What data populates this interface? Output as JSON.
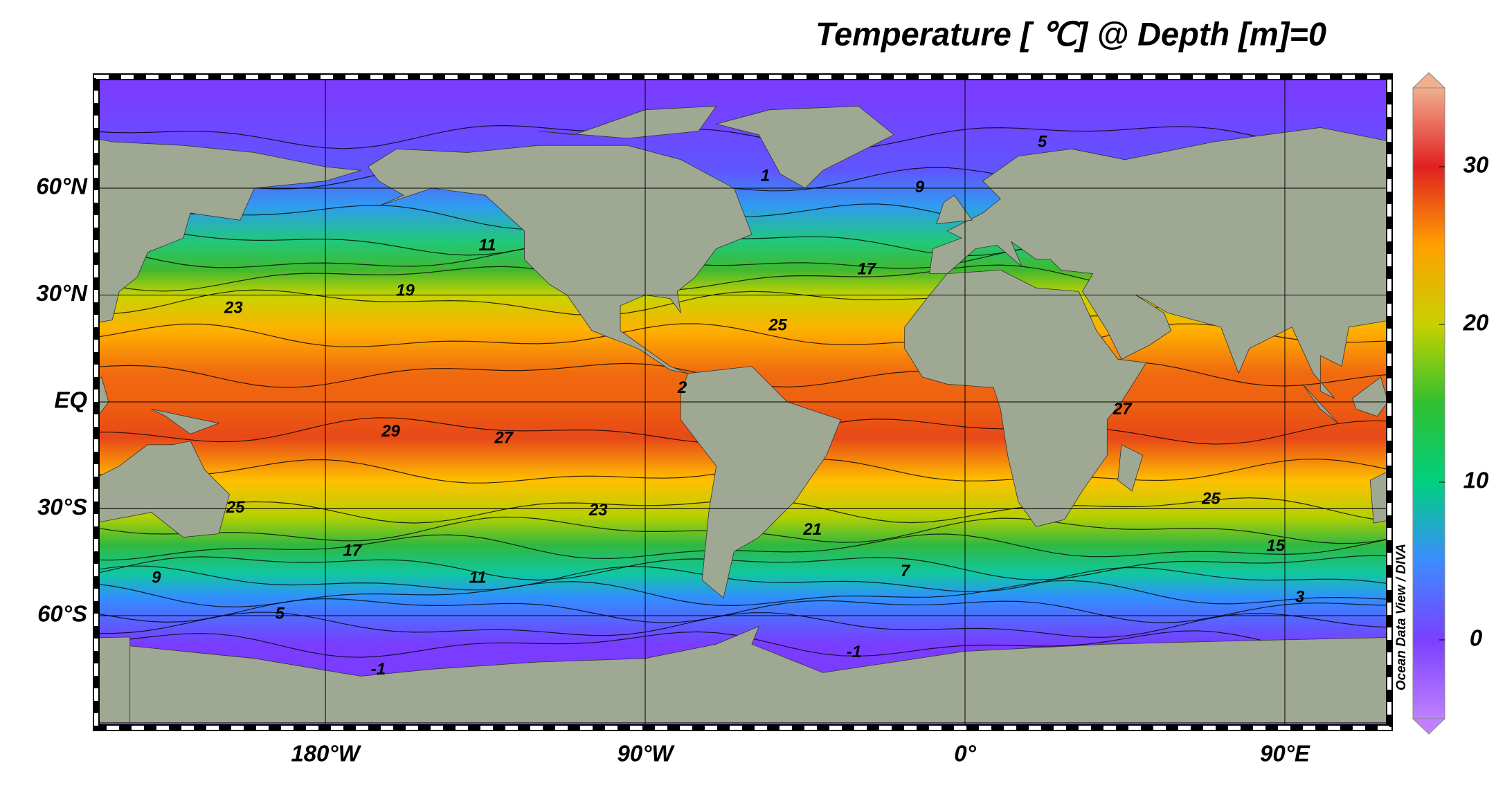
{
  "title": "Temperature [ ℃] @ Depth [m]=0",
  "lon_labels": [
    "180°W",
    "90°W",
    "0°",
    "90°E"
  ],
  "lat_labels": [
    "60°N",
    "30°N",
    "EQ",
    "30°S",
    "60°S"
  ],
  "colorbar": {
    "lim": [
      -5,
      35
    ],
    "ticks": [
      0,
      10,
      20,
      30
    ]
  },
  "contour_labels": [
    "5",
    "1",
    "9",
    "11",
    "17",
    "19",
    "23",
    "25",
    "2",
    "27",
    "29",
    "27",
    "23",
    "25",
    "25",
    "21",
    "17",
    "15",
    "9",
    "11",
    "7",
    "3",
    "5",
    "-1",
    "-1"
  ],
  "credit": "Ocean Data View / DIVA"
}
